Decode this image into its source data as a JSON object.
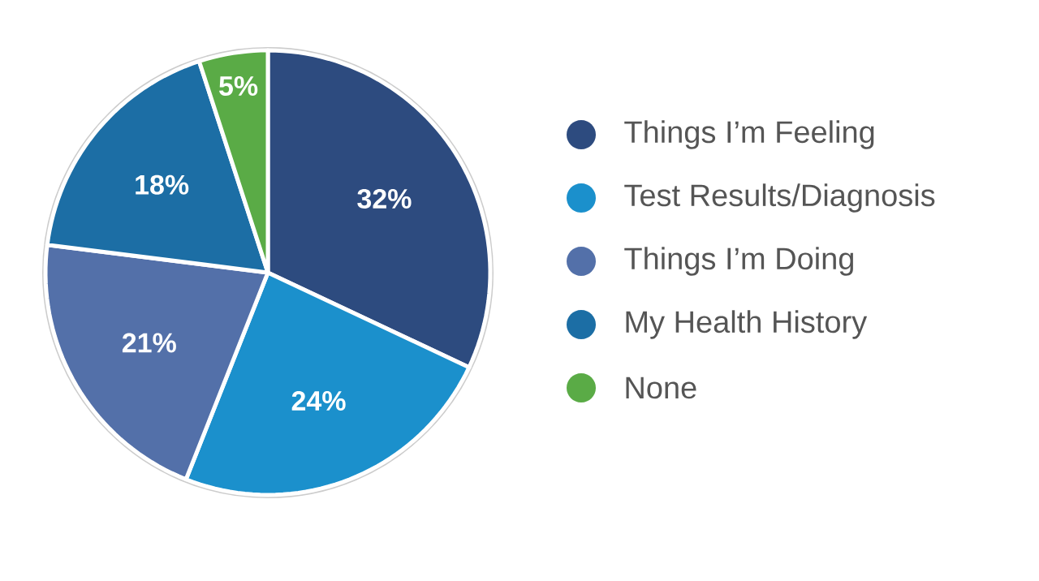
{
  "chart_data": {
    "type": "pie",
    "categories": [
      "Things I’m Feeling",
      "Test Results/Diagnosis",
      "Things I’m Doing",
      "My Health History",
      "None"
    ],
    "values": [
      32,
      24,
      21,
      18,
      5
    ],
    "value_labels": [
      "32%",
      "24%",
      "21%",
      "18%",
      "5%"
    ],
    "colors": [
      "#2d4b7f",
      "#1b90cc",
      "#5370a9",
      "#1c6ea5",
      "#5aab46"
    ],
    "legend": "right"
  }
}
